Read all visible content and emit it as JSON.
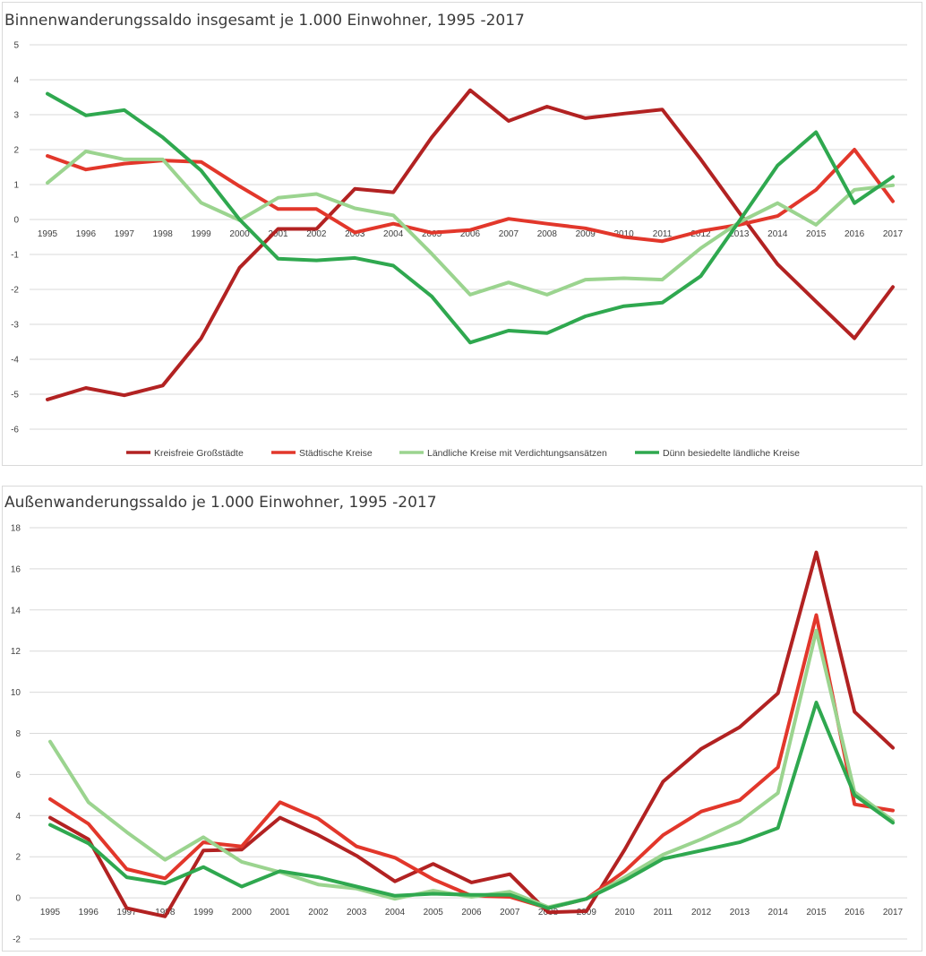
{
  "chart_data": [
    {
      "type": "line",
      "title": "Binnenwanderungssaldo insgesamt je 1.000 Einwohner, 1995 -2017",
      "xlabel": "",
      "ylabel": "",
      "x": [
        "1995",
        "1996",
        "1997",
        "1998",
        "1999",
        "2000",
        "2001",
        "2002",
        "2003",
        "2004",
        "2005",
        "2006",
        "2007",
        "2008",
        "2009",
        "2010",
        "2011",
        "2012",
        "2013",
        "2014",
        "2015",
        "2016",
        "2017"
      ],
      "ylim": [
        -6,
        5
      ],
      "yticks": [
        "5",
        "4",
        "3",
        "2",
        "1",
        "0",
        "-1",
        "-2",
        "-3",
        "-4",
        "-5",
        "-6"
      ],
      "grid": true,
      "legend_position": "bottom",
      "series": [
        {
          "name": "Kreisfreie Großstädte",
          "color": "#b22222",
          "values": [
            -5.15,
            -4.82,
            -5.03,
            -4.75,
            -3.4,
            -1.38,
            -0.27,
            -0.27,
            0.88,
            0.78,
            2.35,
            3.7,
            2.82,
            3.23,
            2.9,
            3.03,
            3.15,
            1.72,
            0.2,
            -1.28,
            -2.35,
            -3.4,
            -1.93
          ]
        },
        {
          "name": "Städtische Kreise",
          "color": "#e2372b",
          "values": [
            1.82,
            1.43,
            1.6,
            1.69,
            1.65,
            0.95,
            0.3,
            0.3,
            -0.37,
            -0.12,
            -0.38,
            -0.3,
            0.02,
            -0.12,
            -0.25,
            -0.5,
            -0.62,
            -0.33,
            -0.15,
            0.1,
            0.85,
            2.0,
            0.52
          ]
        },
        {
          "name": "Ländliche Kreise mit Verdichtungsansätzen",
          "color": "#9bd48f",
          "values": [
            1.05,
            1.95,
            1.72,
            1.72,
            0.48,
            -0.02,
            0.62,
            0.73,
            0.32,
            0.12,
            -0.98,
            -2.15,
            -1.8,
            -2.15,
            -1.72,
            -1.68,
            -1.72,
            -0.82,
            -0.08,
            0.47,
            -0.15,
            0.85,
            0.98
          ]
        },
        {
          "name": "Dünn besiedelte ländliche Kreise",
          "color": "#2fa84f",
          "values": [
            3.6,
            2.98,
            3.13,
            2.35,
            1.4,
            0.0,
            -1.12,
            -1.17,
            -1.1,
            -1.32,
            -2.2,
            -3.52,
            -3.18,
            -3.25,
            -2.77,
            -2.48,
            -2.38,
            -1.62,
            -0.05,
            1.55,
            2.5,
            0.47,
            1.22
          ]
        }
      ]
    },
    {
      "type": "line",
      "title": "Außenwanderungssaldo je 1.000 Einwohner, 1995 -2017",
      "xlabel": "",
      "ylabel": "",
      "x": [
        "1995",
        "1996",
        "1997",
        "1998",
        "1999",
        "2000",
        "2001",
        "2002",
        "2003",
        "2004",
        "2005",
        "2006",
        "2007",
        "2008",
        "2009",
        "2010",
        "2011",
        "2012",
        "2013",
        "2014",
        "2015",
        "2016",
        "2017"
      ],
      "ylim": [
        -2,
        18
      ],
      "yticks": [
        "18",
        "16",
        "14",
        "12",
        "10",
        "8",
        "6",
        "4",
        "2",
        "0",
        "-2"
      ],
      "grid": true,
      "series": [
        {
          "color": "#b22222",
          "values": [
            3.9,
            2.85,
            -0.5,
            -0.9,
            2.3,
            2.35,
            3.9,
            3.05,
            2.05,
            0.8,
            1.65,
            0.75,
            1.15,
            -0.7,
            -0.65,
            2.35,
            5.65,
            7.25,
            8.3,
            9.95,
            16.8,
            9.05,
            7.3
          ]
        },
        {
          "color": "#e2372b",
          "values": [
            4.8,
            3.6,
            1.4,
            0.95,
            2.7,
            2.5,
            4.65,
            3.85,
            2.5,
            1.95,
            0.9,
            0.1,
            0.05,
            -0.5,
            -0.05,
            1.3,
            3.05,
            4.2,
            4.75,
            6.35,
            13.75,
            4.55,
            4.25
          ]
        },
        {
          "color": "#9bd48f",
          "values": [
            7.6,
            4.65,
            3.2,
            1.85,
            2.95,
            1.75,
            1.25,
            0.65,
            0.45,
            -0.05,
            0.35,
            0.05,
            0.3,
            -0.45,
            -0.05,
            1.0,
            2.1,
            2.85,
            3.7,
            5.1,
            13.0,
            5.15,
            3.75
          ]
        },
        {
          "color": "#2fa84f",
          "values": [
            3.55,
            2.65,
            1.0,
            0.7,
            1.5,
            0.55,
            1.3,
            1.0,
            0.55,
            0.1,
            0.2,
            0.15,
            0.15,
            -0.5,
            -0.05,
            0.85,
            1.9,
            2.3,
            2.7,
            3.4,
            9.5,
            5.0,
            3.65
          ]
        }
      ]
    }
  ]
}
